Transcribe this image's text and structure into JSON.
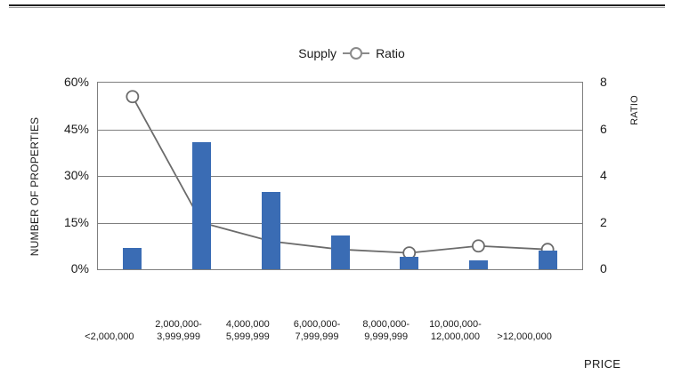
{
  "legend": {
    "supply_label": "Supply",
    "ratio_label": "Ratio",
    "marker_icon": "open-circle-line-marker"
  },
  "chart_data": {
    "type": "combo-bar-line",
    "categories": [
      [
        "<2,000,000"
      ],
      [
        "2,000,000-",
        "3,999,999"
      ],
      [
        "4,000,000",
        "5,999,999"
      ],
      [
        "6,000,000-",
        "7,999,999"
      ],
      [
        "8,000,000-",
        "9,999,999"
      ],
      [
        "10,000,000-",
        "12,000,000"
      ],
      [
        ">12,000,000"
      ]
    ],
    "series": [
      {
        "name": "Supply",
        "type": "bar",
        "axis": "left",
        "unit": "percent",
        "color": "#3a6cb4",
        "values": [
          7,
          41,
          25,
          11,
          4,
          3,
          6
        ]
      },
      {
        "name": "Ratio",
        "type": "line",
        "axis": "right",
        "color": "#6b6b6b",
        "marker": "open-circle",
        "marker_fill": "#ffffff",
        "values": [
          7.4,
          2.0,
          1.2,
          0.85,
          0.7,
          1.0,
          0.85
        ]
      }
    ],
    "left_axis": {
      "label": "NUMBER OF PROPERTIES",
      "min": 0,
      "max": 60,
      "ticks": [
        "60%",
        "45%",
        "30%",
        "15%",
        "0%"
      ]
    },
    "right_axis": {
      "label": "RATIO",
      "min": 0,
      "max": 8,
      "ticks": [
        "8",
        "6",
        "4",
        "2",
        "0"
      ]
    },
    "xlabel": "PRICE",
    "grid": "horizontal-only",
    "legend_position": "top-center",
    "gridline_color": "#7f7f7f"
  }
}
